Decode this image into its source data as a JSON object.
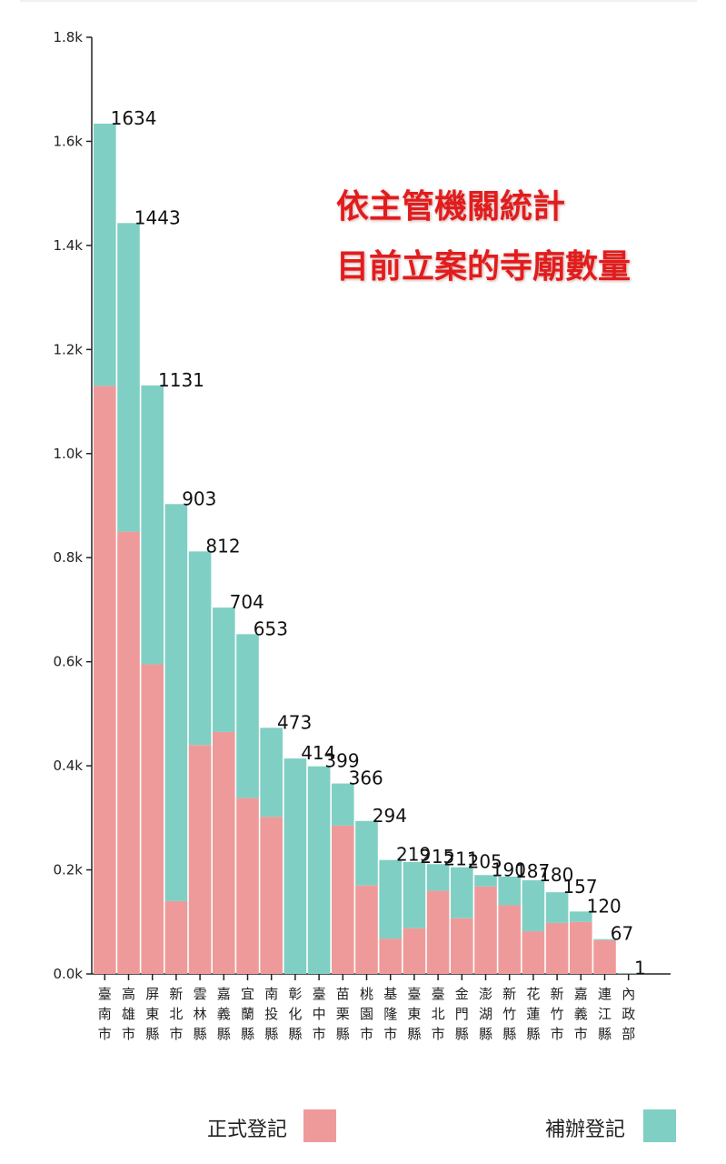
{
  "overlay": {
    "line1": "依主管機關統計",
    "line2": "目前立案的寺廟數量"
  },
  "legend": {
    "formal_label": "正式登記",
    "supplementary_label": "補辦登記"
  },
  "colors": {
    "formal": "#ef9a9a",
    "supplementary": "#80cfc4",
    "axis": "#222222",
    "overlay_text": "#e21c1c"
  },
  "chart_data": {
    "type": "bar",
    "stacked": true,
    "ylim": [
      0,
      1800
    ],
    "yticks": [
      0,
      200,
      400,
      600,
      800,
      1000,
      1200,
      1400,
      1600,
      1800
    ],
    "ytick_labels": [
      "0.0k",
      "0.2k",
      "0.4k",
      "0.6k",
      "0.8k",
      "1.0k",
      "1.2k",
      "1.4k",
      "1.6k",
      "1.8k"
    ],
    "categories": [
      "臺南市",
      "高雄市",
      "屏東縣",
      "新北市",
      "雲林縣",
      "嘉義縣",
      "宜蘭縣",
      "南投縣",
      "彰化縣",
      "臺中市",
      "苗栗縣",
      "桃園市",
      "基隆市",
      "臺東縣",
      "臺北市",
      "金門縣",
      "澎湖縣",
      "新竹縣",
      "花蓮縣",
      "新竹市",
      "嘉義市",
      "連江縣",
      "內政部"
    ],
    "totals": [
      1634,
      1443,
      1131,
      903,
      812,
      704,
      653,
      473,
      414,
      399,
      366,
      294,
      219,
      215,
      211,
      205,
      190,
      187,
      180,
      157,
      120,
      67,
      1
    ],
    "series": [
      {
        "name": "正式登記",
        "values": [
          1130,
          850,
          595,
          140,
          440,
          465,
          338,
          302,
          0,
          0,
          285,
          170,
          68,
          88,
          160,
          107,
          168,
          132,
          82,
          98,
          100,
          65,
          0
        ]
      },
      {
        "name": "補辦登記",
        "values": [
          504,
          593,
          536,
          763,
          372,
          239,
          315,
          171,
          414,
          399,
          81,
          124,
          151,
          127,
          51,
          98,
          22,
          55,
          98,
          59,
          20,
          2,
          1
        ]
      }
    ]
  }
}
